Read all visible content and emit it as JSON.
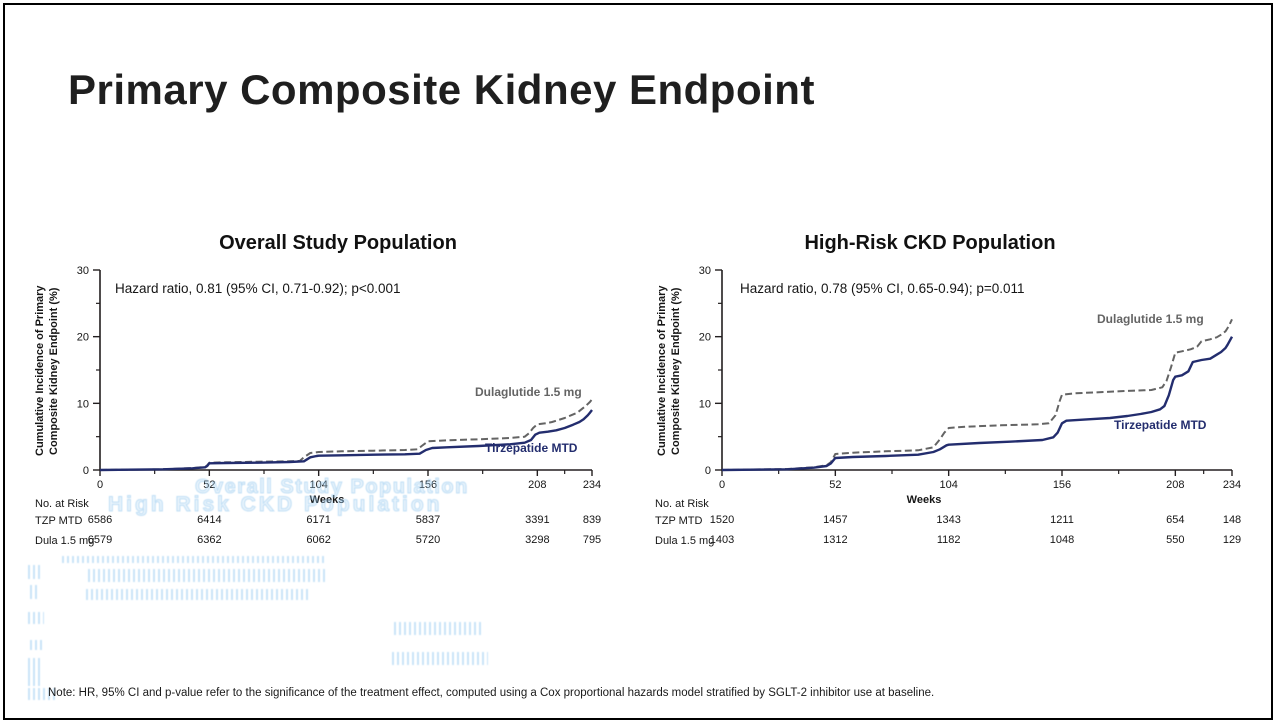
{
  "slide": {
    "title": "Primary Composite Kidney Endpoint",
    "note": "Note: HR, 95% CI and p-value refer to the significance of the treatment effect, computed using a Cox proportional hazards model stratified by SGLT-2 inhibitor use at baseline."
  },
  "colors": {
    "tirzepatide": "#232d6e",
    "dulaglutide": "#646464",
    "axis": "#231f20",
    "ghost_blue": "#8cc3ee"
  },
  "chart_data": [
    {
      "type": "line",
      "title": "Overall Study Population",
      "hazard_text": "Hazard ratio, 0.81 (95% CI, 0.71-0.92); p<0.001",
      "ylabel": "Cumulative Incidence of Primary\nComposite Kidney Endpoint (%)",
      "xlabel": "Weeks",
      "xlim": [
        0,
        234
      ],
      "ylim": [
        0,
        30
      ],
      "x_ticks": [
        0,
        52,
        104,
        156,
        208,
        234
      ],
      "x_minor_ticks": [
        26,
        78,
        130,
        182,
        221
      ],
      "y_ticks": [
        0,
        10,
        20,
        30
      ],
      "y_minor_ticks": [
        5,
        15,
        25
      ],
      "grid": false,
      "series": [
        {
          "name": "Dulaglutide 1.5 mg",
          "style": "dashed",
          "color_key": "dulaglutide",
          "points": [
            [
              0,
              0
            ],
            [
              30,
              0.1
            ],
            [
              44,
              0.3
            ],
            [
              50,
              0.45
            ],
            [
              51,
              0.7
            ],
            [
              52,
              1.1
            ],
            [
              60,
              1.15
            ],
            [
              75,
              1.25
            ],
            [
              90,
              1.3
            ],
            [
              95,
              1.35
            ],
            [
              97,
              1.9
            ],
            [
              100,
              2.55
            ],
            [
              104,
              2.7
            ],
            [
              115,
              2.8
            ],
            [
              130,
              2.9
            ],
            [
              145,
              3.0
            ],
            [
              151,
              3.1
            ],
            [
              153,
              3.6
            ],
            [
              156,
              4.3
            ],
            [
              165,
              4.45
            ],
            [
              180,
              4.6
            ],
            [
              195,
              4.8
            ],
            [
              202,
              5.0
            ],
            [
              204,
              5.5
            ],
            [
              206,
              6.3
            ],
            [
              208,
              6.85
            ],
            [
              212,
              7.0
            ],
            [
              215,
              7.2
            ],
            [
              218,
              7.5
            ],
            [
              221,
              7.8
            ],
            [
              224,
              8.2
            ],
            [
              227,
              8.6
            ],
            [
              229,
              9.1
            ],
            [
              231,
              9.6
            ],
            [
              233,
              10.2
            ],
            [
              234,
              10.6
            ]
          ]
        },
        {
          "name": "Tirzepatide MTD",
          "style": "solid",
          "color_key": "tirzepatide",
          "points": [
            [
              0,
              0
            ],
            [
              30,
              0.1
            ],
            [
              44,
              0.25
            ],
            [
              50,
              0.4
            ],
            [
              51,
              0.6
            ],
            [
              52,
              1.0
            ],
            [
              60,
              1.05
            ],
            [
              75,
              1.1
            ],
            [
              90,
              1.2
            ],
            [
              97,
              1.3
            ],
            [
              100,
              1.9
            ],
            [
              103,
              2.1
            ],
            [
              104,
              2.15
            ],
            [
              115,
              2.2
            ],
            [
              130,
              2.3
            ],
            [
              145,
              2.35
            ],
            [
              152,
              2.45
            ],
            [
              155,
              3.0
            ],
            [
              158,
              3.3
            ],
            [
              165,
              3.4
            ],
            [
              180,
              3.6
            ],
            [
              195,
              3.85
            ],
            [
              202,
              4.1
            ],
            [
              205,
              4.5
            ],
            [
              207,
              5.3
            ],
            [
              209,
              5.6
            ],
            [
              213,
              5.75
            ],
            [
              217,
              5.95
            ],
            [
              221,
              6.3
            ],
            [
              225,
              6.8
            ],
            [
              228,
              7.2
            ],
            [
              230,
              7.6
            ],
            [
              232,
              8.2
            ],
            [
              233,
              8.6
            ],
            [
              234,
              9.0
            ]
          ]
        }
      ],
      "at_risk": {
        "label": "No. at Risk",
        "rows": [
          {
            "label": "TZP MTD",
            "values": [
              "6586",
              "6414",
              "6171",
              "5837",
              "3391",
              "839"
            ]
          },
          {
            "label": "Dula 1.5 mg",
            "values": [
              "6579",
              "6362",
              "6062",
              "5720",
              "3298",
              "795"
            ]
          }
        ]
      },
      "ghost_lines": [
        "Overall Study Population",
        "High Risk CKD Population"
      ]
    },
    {
      "type": "line",
      "title": "High-Risk CKD Population",
      "hazard_text": "Hazard ratio, 0.78 (95% CI, 0.65-0.94); p=0.011",
      "ylabel": "Cumulative Incidence of Primary\nComposite Kidney Endpoint (%)",
      "xlabel": "Weeks",
      "xlim": [
        0,
        234
      ],
      "ylim": [
        0,
        30
      ],
      "x_ticks": [
        0,
        52,
        104,
        156,
        208,
        234
      ],
      "x_minor_ticks": [
        26,
        78,
        130,
        182,
        221
      ],
      "y_ticks": [
        0,
        10,
        20,
        30
      ],
      "y_minor_ticks": [
        5,
        15,
        25
      ],
      "grid": false,
      "series": [
        {
          "name": "Dulaglutide 1.5 mg",
          "style": "dashed",
          "color_key": "dulaglutide",
          "points": [
            [
              0,
              0
            ],
            [
              30,
              0.15
            ],
            [
              42,
              0.4
            ],
            [
              48,
              0.7
            ],
            [
              50,
              1.2
            ],
            [
              52,
              2.4
            ],
            [
              60,
              2.6
            ],
            [
              75,
              2.8
            ],
            [
              90,
              2.95
            ],
            [
              97,
              3.4
            ],
            [
              100,
              4.6
            ],
            [
              102,
              5.6
            ],
            [
              104,
              6.3
            ],
            [
              112,
              6.5
            ],
            [
              128,
              6.7
            ],
            [
              145,
              6.85
            ],
            [
              150,
              7.0
            ],
            [
              153,
              8.2
            ],
            [
              155,
              10.4
            ],
            [
              156,
              11.3
            ],
            [
              162,
              11.5
            ],
            [
              175,
              11.7
            ],
            [
              188,
              11.9
            ],
            [
              197,
              12.0
            ],
            [
              202,
              12.4
            ],
            [
              204,
              13.4
            ],
            [
              206,
              15.4
            ],
            [
              208,
              17.6
            ],
            [
              211,
              17.8
            ],
            [
              215,
              18.1
            ],
            [
              218,
              18.5
            ],
            [
              220,
              19.3
            ],
            [
              224,
              19.6
            ],
            [
              227,
              19.9
            ],
            [
              229,
              20.3
            ],
            [
              231,
              20.8
            ],
            [
              232,
              21.3
            ],
            [
              233,
              21.9
            ],
            [
              234,
              22.6
            ]
          ]
        },
        {
          "name": "Tirzepatide MTD",
          "style": "solid",
          "color_key": "tirzepatide",
          "points": [
            [
              0,
              0
            ],
            [
              30,
              0.1
            ],
            [
              42,
              0.35
            ],
            [
              48,
              0.6
            ],
            [
              50,
              1.0
            ],
            [
              52,
              1.8
            ],
            [
              60,
              1.95
            ],
            [
              75,
              2.1
            ],
            [
              90,
              2.3
            ],
            [
              97,
              2.7
            ],
            [
              100,
              3.1
            ],
            [
              103,
              3.7
            ],
            [
              104,
              3.8
            ],
            [
              118,
              4.05
            ],
            [
              132,
              4.25
            ],
            [
              147,
              4.5
            ],
            [
              152,
              4.9
            ],
            [
              154,
              5.6
            ],
            [
              156,
              7.0
            ],
            [
              158,
              7.4
            ],
            [
              168,
              7.6
            ],
            [
              178,
              7.8
            ],
            [
              186,
              8.1
            ],
            [
              192,
              8.4
            ],
            [
              197,
              8.7
            ],
            [
              201,
              9.1
            ],
            [
              203,
              9.6
            ],
            [
              205,
              11.2
            ],
            [
              207,
              13.5
            ],
            [
              208,
              14.0
            ],
            [
              211,
              14.2
            ],
            [
              214,
              14.8
            ],
            [
              216,
              16.2
            ],
            [
              220,
              16.5
            ],
            [
              224,
              16.7
            ],
            [
              227,
              17.3
            ],
            [
              229,
              17.7
            ],
            [
              231,
              18.3
            ],
            [
              232,
              18.8
            ],
            [
              233,
              19.4
            ],
            [
              234,
              20.0
            ]
          ]
        }
      ],
      "at_risk": {
        "label": "No. at Risk",
        "rows": [
          {
            "label": "TZP MTD",
            "values": [
              "1520",
              "1457",
              "1343",
              "1211",
              "654",
              "148"
            ]
          },
          {
            "label": "Dula 1.5 mg",
            "values": [
              "1403",
              "1312",
              "1182",
              "1048",
              "550",
              "129"
            ]
          }
        ]
      }
    }
  ]
}
